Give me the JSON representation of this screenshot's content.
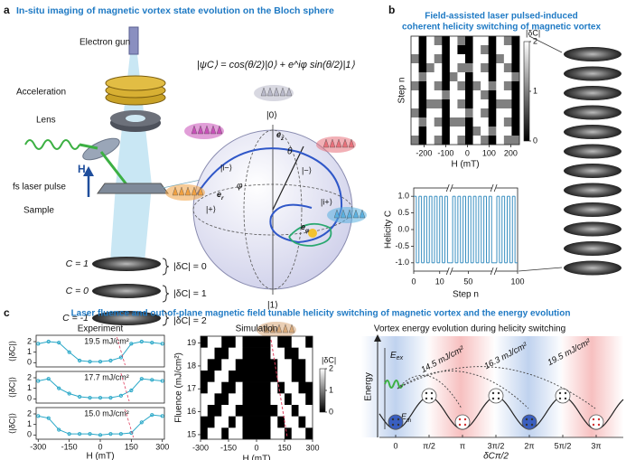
{
  "panel_a": {
    "label": "a",
    "title": "In-situ imaging of magnetic vortex state evolution on the Bloch sphere",
    "equation": "|ψC⟩ = cos(θ/2)|0⟩ + e^iφ sin(θ/2)|1⟩",
    "instrument": [
      "Electron gun",
      "Acceleration",
      "Lens",
      "fs laser pulse",
      "Sample"
    ],
    "field": "H",
    "states": [
      {
        "helicity": "C = 1",
        "change": "|δC| = 0"
      },
      {
        "helicity": "C = 0",
        "change": "|δC| = 1"
      },
      {
        "helicity": "C = -1",
        "change": "|δC| = 2"
      }
    ],
    "bloch": {
      "north": "|0⟩",
      "south": "|1⟩",
      "plus": "|+⟩",
      "minus": "|−⟩",
      "i_plus": "|i+⟩",
      "i_minus": "|i−⟩",
      "axes": [
        {
          "main": "e",
          "sub": "z"
        },
        {
          "main": "e",
          "sub": "r"
        },
        {
          "main": "e",
          "sub": "φ"
        }
      ],
      "angles": [
        "θ",
        "φ"
      ]
    }
  },
  "panel_b": {
    "label": "b",
    "title": [
      "Field-assisted laser pulsed-induced",
      "coherent helicity switching of magnetic vortex"
    ],
    "heatmap": {
      "type": "heatmap",
      "xlabel": "H (mT)",
      "ylabel": "Step n",
      "xlim": [
        -260,
        240
      ],
      "xticks": [
        -200,
        -100,
        0,
        100,
        200
      ],
      "colorbar": {
        "label": "|δC|",
        "lim": [
          0,
          2
        ],
        "ticks": [
          0,
          1,
          2
        ]
      },
      "z": [
        [
          2,
          0,
          2,
          1,
          0,
          2,
          1,
          0,
          2,
          2,
          0,
          2,
          1,
          0
        ],
        [
          2,
          0,
          2,
          2,
          0,
          2,
          0,
          0,
          2,
          1,
          0,
          2,
          2,
          0
        ],
        [
          1,
          0,
          2,
          1,
          0,
          2,
          2,
          0,
          2,
          2,
          0,
          1,
          2,
          0
        ],
        [
          2,
          0,
          1,
          2,
          0,
          2,
          1,
          1,
          2,
          1,
          0,
          2,
          1,
          0
        ],
        [
          2,
          1,
          2,
          2,
          0,
          1,
          2,
          0,
          2,
          2,
          0,
          2,
          2,
          1
        ],
        [
          1,
          0,
          2,
          1,
          0,
          2,
          1,
          0,
          1,
          2,
          1,
          2,
          1,
          0
        ],
        [
          2,
          0,
          2,
          2,
          1,
          2,
          2,
          0,
          2,
          1,
          0,
          2,
          2,
          0
        ],
        [
          2,
          0,
          1,
          1,
          0,
          2,
          1,
          0,
          2,
          2,
          0,
          1,
          1,
          0
        ],
        [
          1,
          0,
          2,
          2,
          0,
          2,
          2,
          1,
          2,
          1,
          0,
          2,
          2,
          0
        ],
        [
          2,
          1,
          2,
          1,
          0,
          1,
          1,
          0,
          2,
          2,
          0,
          2,
          1,
          0
        ],
        [
          2,
          0,
          2,
          2,
          0,
          2,
          2,
          0,
          1,
          2,
          1,
          2,
          2,
          0
        ],
        [
          1,
          0,
          2,
          1,
          0,
          2,
          1,
          0,
          2,
          1,
          0,
          2,
          1,
          1
        ]
      ]
    },
    "helicity": {
      "type": "step",
      "xlabel": "Step n",
      "ylabel": "Helicity C",
      "color": "#3a8fc0",
      "xsegments": [
        [
          0,
          14
        ],
        [
          43,
          60
        ],
        [
          91,
          100
        ]
      ],
      "xticks": [
        0,
        10,
        50,
        100
      ],
      "ylim": [
        -1.25,
        1.25
      ],
      "yticks": [
        {
          "value": -1,
          "label": "-1.0"
        },
        -0.5,
        {
          "value": 0,
          "label": "0.0"
        },
        0.5,
        {
          "value": 1,
          "label": "1.0"
        }
      ],
      "x": [
        0,
        1,
        2,
        3,
        4,
        5,
        6,
        7,
        8,
        9,
        10,
        11,
        12,
        13,
        43,
        44,
        45,
        46,
        47,
        48,
        49,
        50,
        51,
        52,
        53,
        54,
        55,
        56,
        57,
        58,
        59,
        91,
        92,
        93,
        94,
        95,
        96,
        97,
        98,
        99
      ],
      "values": [
        1,
        -1,
        1,
        -1,
        1,
        -1,
        1,
        -1,
        1,
        -1,
        1,
        -1,
        1,
        -1,
        -1,
        1,
        -1,
        1,
        -1,
        1,
        -1,
        1,
        -1,
        1,
        -1,
        1,
        -1,
        1,
        -1,
        1,
        -1,
        -1,
        1,
        -1,
        1,
        -1,
        1,
        -1,
        1,
        -1
      ]
    }
  },
  "panel_c": {
    "label": "c",
    "title": "Laser fluence and out-of-plane magnetic field tunable helicity switching of magnetic vortex and the energy evolution",
    "experiment": {
      "type": "scatter",
      "title": "Experiment",
      "xlabel": "H (mT)",
      "ylabel": "⟨|δC|⟩",
      "color": "#2aa8c8",
      "xlim": [
        -310,
        310
      ],
      "xticks": [
        -300,
        -150,
        0,
        150,
        300
      ],
      "ylim": [
        -0.4,
        2.6
      ],
      "yticks": [
        0,
        1,
        2
      ],
      "x": [
        -300,
        -250,
        -200,
        -150,
        -100,
        -50,
        0,
        50,
        100,
        150,
        200,
        250,
        300
      ],
      "plots": [
        {
          "annotation": "19.5 mJ/cm²",
          "values": [
            1.8,
            2.0,
            1.9,
            1.0,
            0.2,
            0.1,
            0.1,
            0.2,
            0.5,
            1.8,
            2.0,
            1.9,
            1.8
          ]
        },
        {
          "annotation": "17.7 mJ/cm²",
          "values": [
            1.7,
            1.9,
            1.0,
            0.5,
            0.2,
            0.1,
            0.1,
            0.1,
            0.3,
            0.8,
            1.9,
            1.8,
            1.7
          ]
        },
        {
          "annotation": "15.0 mJ/cm²",
          "values": [
            1.8,
            1.6,
            0.5,
            0.1,
            0.1,
            0.1,
            0.0,
            0.1,
            0.1,
            0.2,
            1.2,
            1.9,
            1.8
          ]
        }
      ]
    },
    "simulation": {
      "type": "heatmap",
      "title": "Simulation",
      "xlabel": "H (mT)",
      "ylabel": "Fluence (mJ/cm²)",
      "xlim": [
        -300,
        300
      ],
      "xticks": [
        -300,
        -150,
        0,
        150,
        300
      ],
      "ylim": [
        14.8,
        19.3
      ],
      "yticks": [
        15,
        16,
        17,
        18,
        19
      ],
      "colorbar": {
        "label": "|δC|",
        "lim": [
          0,
          2
        ],
        "ticks": [
          0,
          1,
          2
        ]
      },
      "z": [
        [
          0,
          2,
          2,
          0,
          0,
          2,
          0,
          0,
          0,
          0,
          2,
          0,
          0,
          2,
          2,
          0
        ],
        [
          2,
          2,
          0,
          0,
          2,
          2,
          0,
          0,
          0,
          0,
          2,
          2,
          0,
          0,
          2,
          2
        ],
        [
          2,
          0,
          0,
          2,
          2,
          0,
          0,
          0,
          0,
          0,
          0,
          2,
          2,
          0,
          0,
          2
        ],
        [
          0,
          0,
          2,
          2,
          0,
          0,
          0,
          0,
          0,
          0,
          0,
          2,
          2,
          0,
          0,
          2
        ],
        [
          0,
          2,
          2,
          0,
          0,
          2,
          0,
          0,
          0,
          0,
          2,
          0,
          2,
          2,
          0,
          0
        ],
        [
          2,
          2,
          0,
          0,
          2,
          2,
          0,
          0,
          0,
          0,
          2,
          2,
          0,
          2,
          2,
          0
        ],
        [
          2,
          0,
          0,
          2,
          2,
          0,
          0,
          0,
          0,
          0,
          0,
          2,
          2,
          0,
          2,
          2
        ],
        [
          0,
          0,
          2,
          2,
          0,
          2,
          0,
          0,
          0,
          0,
          2,
          0,
          2,
          2,
          0,
          2
        ],
        [
          0,
          2,
          2,
          0,
          2,
          2,
          0,
          0,
          0,
          0,
          2,
          2,
          0,
          2,
          2,
          0
        ]
      ]
    },
    "energy": {
      "title": "Vortex energy evolution during helicity switching",
      "ylabel": "Energy",
      "levels": [
        {
          "main": "E",
          "sub": "ex"
        },
        {
          "main": "E",
          "sub": "th"
        }
      ],
      "xtick_labels": [
        "0",
        "π/2",
        "π",
        "3π/2",
        "2π",
        "5π/2",
        "3π"
      ],
      "xlabel": "δCπ/2",
      "paths": [
        "14.5 mJ/cm²",
        "16.3 mJ/cm²",
        "19.5 mJ/cm²"
      ]
    }
  }
}
